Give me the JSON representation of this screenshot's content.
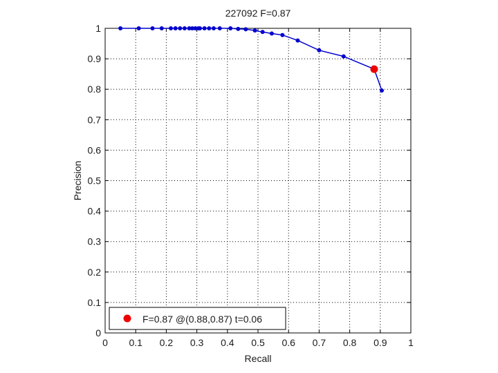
{
  "chart_data": {
    "type": "line",
    "title": "227092 F=0.87",
    "xlabel": "Recall",
    "ylabel": "Precision",
    "xlim": [
      0,
      1
    ],
    "ylim": [
      0,
      1
    ],
    "xticks": [
      0,
      0.1,
      0.2,
      0.3,
      0.4,
      0.5,
      0.6,
      0.7,
      0.8,
      0.9,
      1
    ],
    "yticks": [
      0,
      0.1,
      0.2,
      0.3,
      0.4,
      0.5,
      0.6,
      0.7,
      0.8,
      0.9,
      1
    ],
    "xtick_labels": [
      "0",
      "0.1",
      "0.2",
      "0.3",
      "0.4",
      "0.5",
      "0.6",
      "0.7",
      "0.8",
      "0.9",
      "1"
    ],
    "ytick_labels": [
      "0",
      "0.1",
      "0.2",
      "0.3",
      "0.4",
      "0.5",
      "0.6",
      "0.7",
      "0.8",
      "0.9",
      "1"
    ],
    "grid": true,
    "legend_position": "bottom-left",
    "series": [
      {
        "color": "#0000cc",
        "x": [
          0.05,
          0.11,
          0.155,
          0.185,
          0.215,
          0.23,
          0.245,
          0.26,
          0.275,
          0.285,
          0.295,
          0.305,
          0.31,
          0.325,
          0.34,
          0.355,
          0.375,
          0.41,
          0.435,
          0.46,
          0.49,
          0.515,
          0.545,
          0.58,
          0.63,
          0.7,
          0.78,
          0.88,
          0.905
        ],
        "y": [
          1,
          1,
          1,
          1,
          1,
          1,
          1,
          1,
          1,
          1,
          1,
          1,
          1,
          1,
          1,
          1,
          1,
          1,
          0.998,
          0.997,
          0.993,
          0.988,
          0.983,
          0.978,
          0.96,
          0.928,
          0.908,
          0.866,
          0.796
        ]
      }
    ],
    "highlight_point": {
      "x": 0.88,
      "y": 0.866,
      "color": "#ee0000",
      "label": "F=0.87 @(0.88,0.87) t=0.06"
    }
  }
}
